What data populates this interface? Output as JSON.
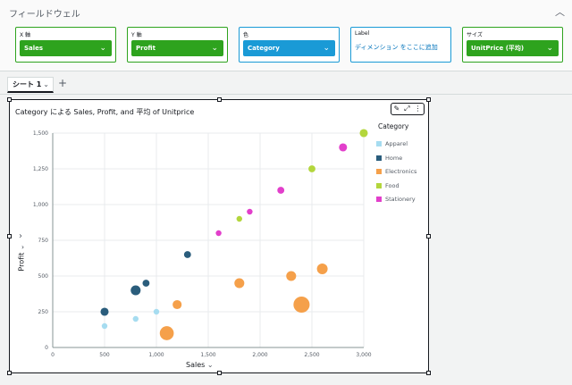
{
  "field_wells": {
    "title": "フィールドウェル",
    "x_axis": {
      "label": "X 軸",
      "value": "Sales"
    },
    "y_axis": {
      "label": "Y 軸",
      "value": "Profit"
    },
    "color": {
      "label": "色",
      "value": "Category"
    },
    "label": {
      "label": "Label",
      "placeholder": "ディメンション をここに追加"
    },
    "size": {
      "label": "サイズ",
      "value": "UnitPrice (平均)"
    }
  },
  "sheet": {
    "tab_label": "シート 1"
  },
  "visual": {
    "title": "Category による Sales, Profit, and 平均 of Unitprice"
  },
  "colors": {
    "apparel": "#a6dcf0",
    "home": "#2a5d7c",
    "electronics": "#f5a04a",
    "food": "#b3d63c",
    "stationery": "#e23fcb",
    "field_green": "#2ea31e",
    "field_blue": "#1a9ad6"
  },
  "chart_data": {
    "type": "scatter",
    "title": "Category による Sales, Profit, and 平均 of Unitprice",
    "xlabel": "Sales",
    "ylabel": "Profit",
    "xlim": [
      0,
      3000
    ],
    "ylim": [
      0,
      1500
    ],
    "x_ticks": [
      "0",
      "500",
      "1,000",
      "1,500",
      "2,000",
      "2,500",
      "3,000"
    ],
    "y_ticks": [
      "0",
      "250",
      "500",
      "750",
      "1,000",
      "1,250",
      "1,500"
    ],
    "grid": true,
    "legend_title": "Category",
    "legend_position": "right",
    "series": [
      {
        "name": "Apparel",
        "color": "#a6dcf0",
        "points": [
          [
            500,
            150,
            1
          ],
          [
            800,
            200,
            1
          ],
          [
            1000,
            250,
            1
          ]
        ]
      },
      {
        "name": "Home",
        "color": "#2a5d7c",
        "points": [
          [
            500,
            250,
            2
          ],
          [
            800,
            400,
            3
          ],
          [
            900,
            450,
            1.5
          ],
          [
            1300,
            650,
            1.5
          ]
        ]
      },
      {
        "name": "Electronics",
        "color": "#f5a04a",
        "points": [
          [
            1100,
            100,
            6
          ],
          [
            1200,
            300,
            2.5
          ],
          [
            1800,
            450,
            3
          ],
          [
            2300,
            500,
            3
          ],
          [
            2400,
            300,
            8
          ],
          [
            2600,
            550,
            3.5
          ]
        ]
      },
      {
        "name": "Food",
        "color": "#b3d63c",
        "points": [
          [
            1800,
            900,
            1
          ],
          [
            2500,
            1250,
            1.5
          ],
          [
            3000,
            1500,
            2
          ]
        ]
      },
      {
        "name": "Stationery",
        "color": "#e23fcb",
        "points": [
          [
            1600,
            800,
            1
          ],
          [
            1900,
            950,
            1
          ],
          [
            2200,
            1100,
            1.5
          ],
          [
            2800,
            1400,
            2
          ]
        ]
      }
    ]
  }
}
